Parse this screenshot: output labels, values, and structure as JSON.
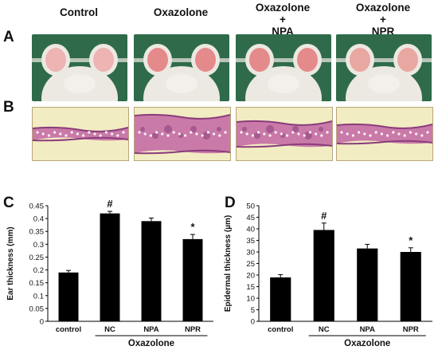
{
  "panels": {
    "a_label": "A",
    "b_label": "B",
    "c_label": "C",
    "d_label": "D"
  },
  "column_headers": [
    {
      "line1": "Control",
      "line2": "",
      "line3": ""
    },
    {
      "line1": "Oxazolone",
      "line2": "",
      "line3": ""
    },
    {
      "line1": "Oxazolone",
      "line2": "+",
      "line3": "NPA"
    },
    {
      "line1": "Oxazolone",
      "line2": "+",
      "line3": "NPR"
    }
  ],
  "colors": {
    "photo_background": "#2f6b4a",
    "fur": "#ece8e2",
    "ear": "#e6a3a3",
    "histo_background": "#f2ecc2",
    "tissue_pink": "#c97aa8",
    "tissue_purple": "#8a3d7c",
    "bar": "#000000"
  },
  "chart_data": [
    {
      "type": "bar",
      "panel": "C",
      "categories": [
        "control",
        "NC",
        "NPA",
        "NPR"
      ],
      "values": [
        0.19,
        0.42,
        0.39,
        0.32
      ],
      "errors": [
        0.008,
        0.008,
        0.012,
        0.018
      ],
      "annotations": [
        "",
        "#",
        "",
        "*"
      ],
      "ylabel": "Ear thickness (mm)",
      "xlabel": "Oxazolone",
      "group_label_span": [
        "NC",
        "NPR"
      ],
      "ylim": [
        0,
        0.45
      ],
      "yticks": [
        "0",
        "0.05",
        "0.1",
        "0.15",
        "0.2",
        "0.25",
        "0.3",
        "0.35",
        "0.4",
        "0.45"
      ],
      "grid": false
    },
    {
      "type": "bar",
      "panel": "D",
      "categories": [
        "control",
        "NC",
        "NPA",
        "NPR"
      ],
      "values": [
        19,
        39.5,
        31.5,
        30
      ],
      "errors": [
        1.2,
        3,
        1.8,
        1.8
      ],
      "annotations": [
        "",
        "#",
        "",
        "*"
      ],
      "ylabel": "Epidermal thickness (µm)",
      "xlabel": "Oxazolone",
      "group_label_span": [
        "NC",
        "NPR"
      ],
      "ylim": [
        0,
        50
      ],
      "yticks": [
        "0",
        "5",
        "10",
        "15",
        "20",
        "25",
        "30",
        "35",
        "40",
        "45",
        "50"
      ],
      "grid": false
    }
  ]
}
